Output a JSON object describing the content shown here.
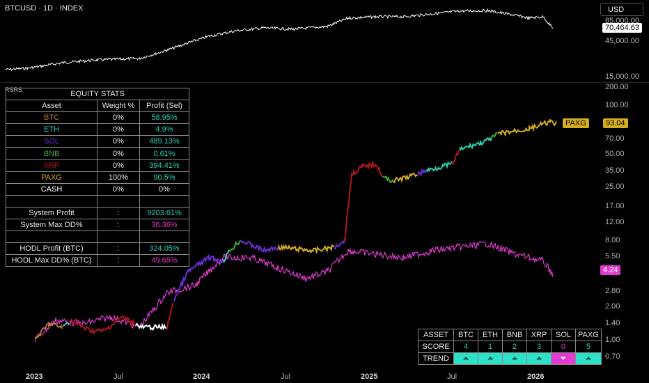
{
  "header": {
    "title": "BTCUSD · 1D · INDEX",
    "currency_button": "USD"
  },
  "price_pane": {
    "axis": [
      "85,000.00",
      "45,000.00",
      "15,000.00"
    ],
    "last_price": "70,464.63",
    "colors": {
      "line": "#ffffff",
      "tag_bg": "#ffffff"
    }
  },
  "rsrs_pane": {
    "name": "RSRS",
    "axis": [
      "200.00",
      "100.00",
      "70.00",
      "50.00",
      "35.00",
      "25.00",
      "17.00",
      "12.00",
      "8.00",
      "5.50",
      "2.80",
      "2.00",
      "1.40",
      "1.00",
      "0.70"
    ],
    "strategy_tag": {
      "label": "PAXG",
      "value": "93.04",
      "color": "#d6ad1f"
    },
    "hodl_tag": {
      "value": "4.24",
      "color": "#e03bd0"
    }
  },
  "equity_stats": {
    "title": "EQUITY STATS",
    "headers": [
      "Asset",
      "Weight %",
      "Profit (Sel)"
    ],
    "assets": [
      {
        "name": "BTC",
        "weight": "0%",
        "profit": "58.95%",
        "color": "#b67a2e"
      },
      {
        "name": "ETH",
        "weight": "0%",
        "profit": "4.9%",
        "color": "#2ad2b4"
      },
      {
        "name": "SOL",
        "weight": "0%",
        "profit": "489.13%",
        "color": "#6a2fd6"
      },
      {
        "name": "BNB",
        "weight": "0%",
        "profit": "0.61%",
        "color": "#3fae3b"
      },
      {
        "name": "XRP",
        "weight": "0%",
        "profit": "394.41%",
        "color": "#b0161c"
      },
      {
        "name": "PAXG",
        "weight": "100%",
        "profit": "90.5%",
        "color": "#d6ad1f"
      },
      {
        "name": "CASH",
        "weight": "0%",
        "profit": "0%",
        "color": "#ffffff"
      }
    ],
    "system_profit": {
      "label": "System Profit",
      "sep": ":",
      "value": "9203.61%"
    },
    "system_dd": {
      "label": "System Max DD%",
      "sep": ":",
      "value": "36.36%"
    },
    "hodl_profit": {
      "label": "HODL Profit (BTC)",
      "sep": ":",
      "value": "324.05%"
    },
    "hodl_dd": {
      "label": "HODL Max DD% (BTC)",
      "sep": ":",
      "value": "49.65%"
    }
  },
  "score_table": {
    "headers": [
      "ASSET",
      "BTC",
      "ETH",
      "BNB",
      "XRP",
      "SOL",
      "PAXG"
    ],
    "score_label": "SCORE",
    "scores": [
      "4",
      "1",
      "2",
      "3",
      "0",
      "5"
    ],
    "trend_label": "TREND",
    "trends": [
      "up",
      "up",
      "up",
      "up",
      "down",
      "up"
    ],
    "trend_icons": {
      "up": "⏶",
      "down": "⏷"
    }
  },
  "x_axis": [
    "2023",
    "Jul",
    "2024",
    "Jul",
    "2025",
    "Jul",
    "2026"
  ]
}
